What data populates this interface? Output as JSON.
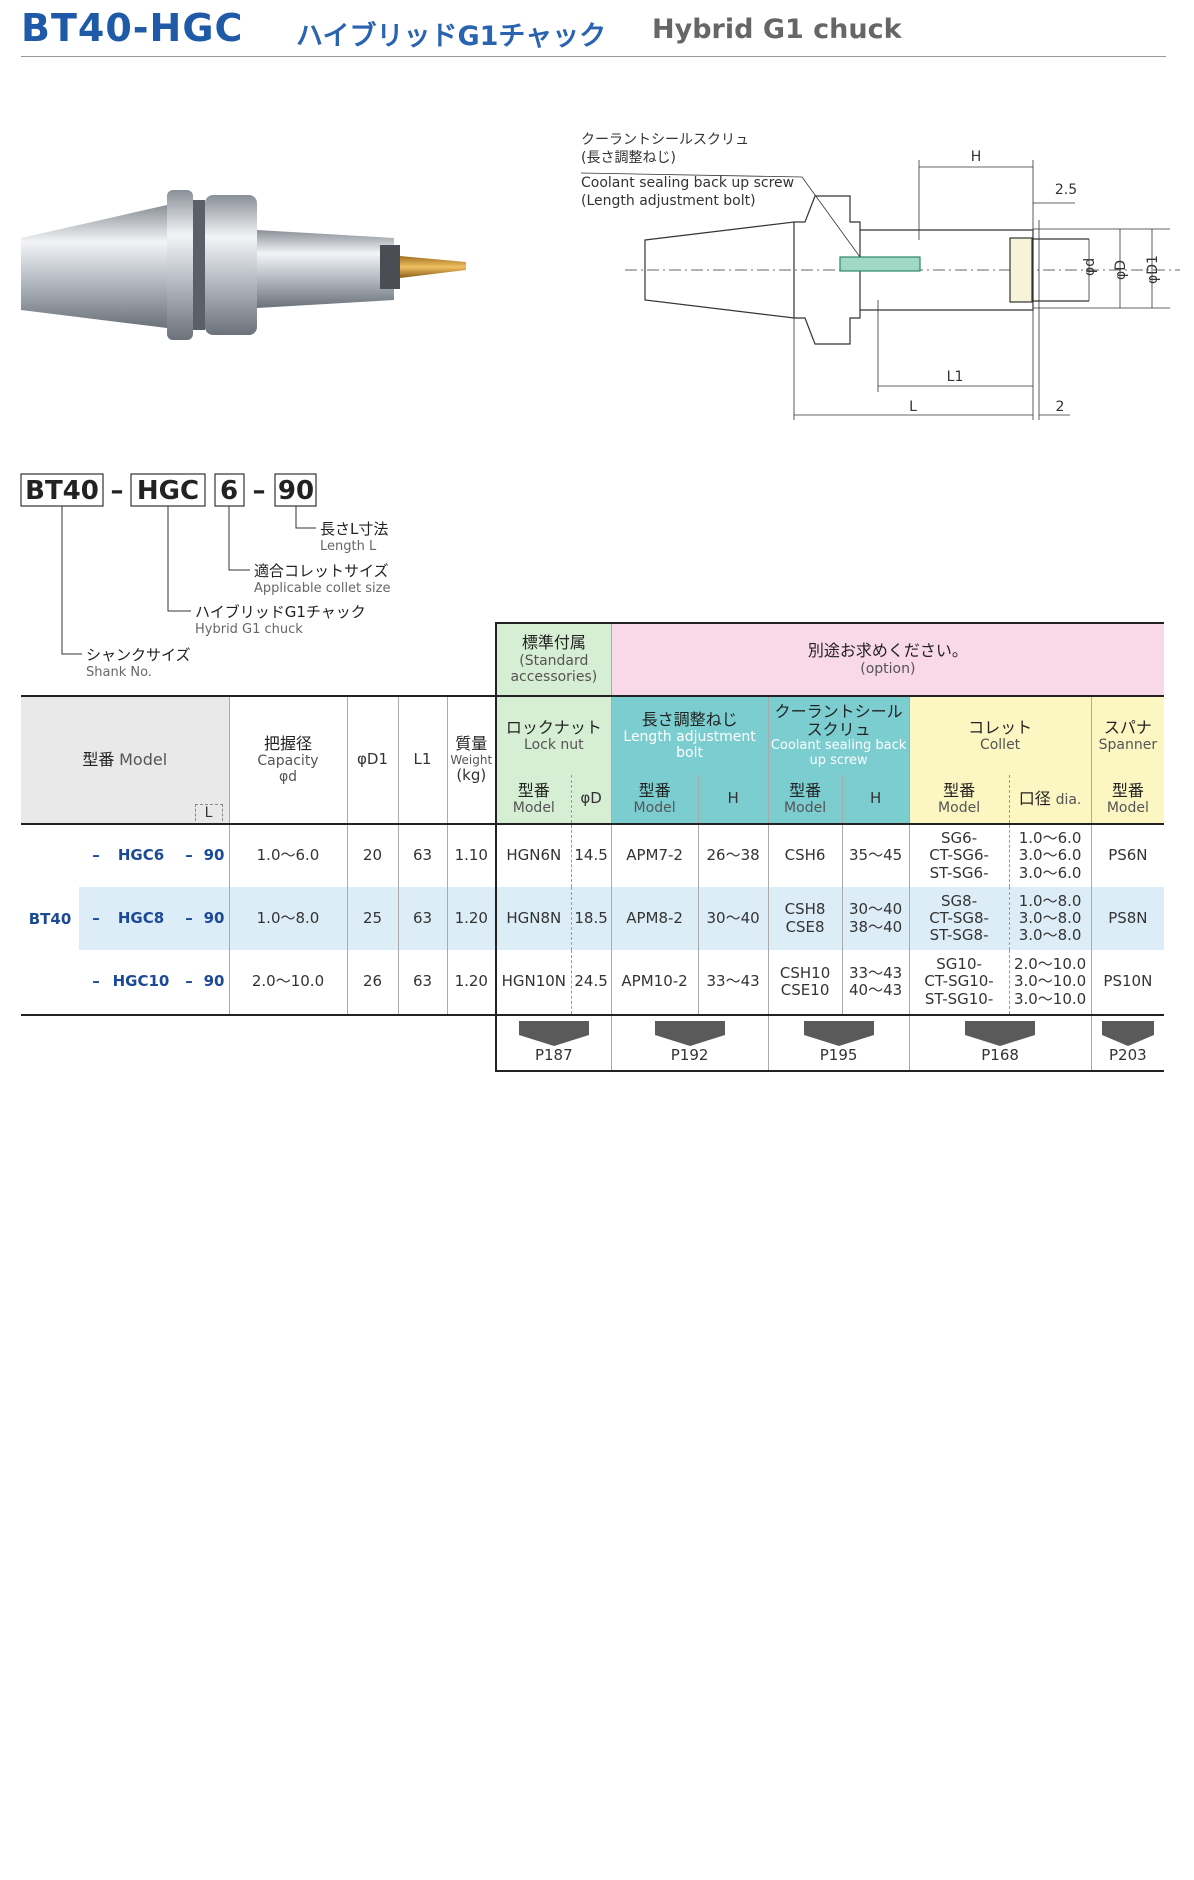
{
  "header": {
    "title": "BT40-HGC",
    "title_ja": "ハイブリッドG1チャック",
    "title_en": "Hybrid G1 chuck"
  },
  "diagram": {
    "callout_ja": "クーラントシールスクリュ",
    "callout_ja_sub": "(長さ調整ねじ)",
    "callout_en": "Coolant sealing back up  screw",
    "callout_en_sub": "(Length adjustment bolt)",
    "dims": {
      "h": "H",
      "offset": "2.5",
      "d": "φd",
      "big_d": "φD",
      "d1": "φD1",
      "l1": "L1",
      "l": "L",
      "gap": "2"
    }
  },
  "model_code": {
    "parts": [
      "BT40",
      "HGC",
      "6",
      "90"
    ],
    "separator": "–",
    "legend": [
      {
        "ja": "長さL寸法",
        "en": "Length L"
      },
      {
        "ja": "適合コレットサイズ",
        "en": "Applicable collet size"
      },
      {
        "ja": "ハイブリッドG1チャック",
        "en": "Hybrid G1 chuck"
      },
      {
        "ja": "シャンクサイズ",
        "en": "Shank No."
      }
    ]
  },
  "table": {
    "top": {
      "standard_ja": "標準付属",
      "standard_en": "(Standard accessories)",
      "option_ja": "別途お求めください。",
      "option_en": "(option)"
    },
    "columns": {
      "model_ja": "型番",
      "model_en": "Model",
      "length": "L",
      "capacity_ja": "把握径",
      "capacity_en": "Capacity",
      "capacity_sym": "φd",
      "d1": "φD1",
      "l1": "L1",
      "weight_ja": "質量",
      "weight_en": "Weight",
      "weight_unit": "(kg)",
      "nut_ja": "ロックナット",
      "nut_en": "Lock nut",
      "bolt_ja": "長さ調整ねじ",
      "bolt_en": "Length adjustment bolt",
      "screw_ja": "クーラントシールスクリュ",
      "screw_en": "Coolant sealing back up screw",
      "collet_ja": "コレット",
      "collet_en": "Collet",
      "spanner_ja": "スパナ",
      "spanner_en": "Spanner"
    },
    "subcolumns": {
      "model_ja": "型番",
      "model_en": "Model",
      "nut_d": "φD",
      "h": "H",
      "dia_ja": "口径",
      "dia_en": "dia."
    },
    "shank": "BT40",
    "separator": "–",
    "rows": [
      {
        "model": "HGC6",
        "length": "90",
        "capacity": "1.0～6.0",
        "d1": "20",
        "l1": "63",
        "weight": "1.10",
        "nut": "HGN6N",
        "nut_d": "14.5",
        "bolt": "APM7-2",
        "bolt_h": "26～38",
        "screw": [
          "CSH6"
        ],
        "screw_h": [
          "35～45"
        ],
        "collet": [
          "SG6-",
          "CT-SG6-",
          "ST-SG6-"
        ],
        "collet_dia": [
          "1.0～6.0",
          "3.0～6.0",
          "3.0～6.0"
        ],
        "spanner": "PS6N"
      },
      {
        "model": "HGC8",
        "length": "90",
        "capacity": "1.0～8.0",
        "d1": "25",
        "l1": "63",
        "weight": "1.20",
        "nut": "HGN8N",
        "nut_d": "18.5",
        "bolt": "APM8-2",
        "bolt_h": "30～40",
        "screw": [
          "CSH8",
          "CSE8"
        ],
        "screw_h": [
          "30～40",
          "38～40"
        ],
        "collet": [
          "SG8-",
          "CT-SG8-",
          "ST-SG8-"
        ],
        "collet_dia": [
          "1.0～8.0",
          "3.0～8.0",
          "3.0～8.0"
        ],
        "spanner": "PS8N"
      },
      {
        "model": "HGC10",
        "length": "90",
        "capacity": "2.0～10.0",
        "d1": "26",
        "l1": "63",
        "weight": "1.20",
        "nut": "HGN10N",
        "nut_d": "24.5",
        "bolt": "APM10-2",
        "bolt_h": "33～43",
        "screw": [
          "CSH10",
          "CSE10"
        ],
        "screw_h": [
          "33～43",
          "40～43"
        ],
        "collet": [
          "SG10-",
          "CT-SG10-",
          "ST-SG10-"
        ],
        "collet_dia": [
          "2.0～10.0",
          "3.0～10.0",
          "3.0～10.0"
        ],
        "spanner": "PS10N"
      }
    ],
    "page_refs": [
      "P187",
      "P192",
      "P195",
      "P168",
      "P203"
    ]
  }
}
